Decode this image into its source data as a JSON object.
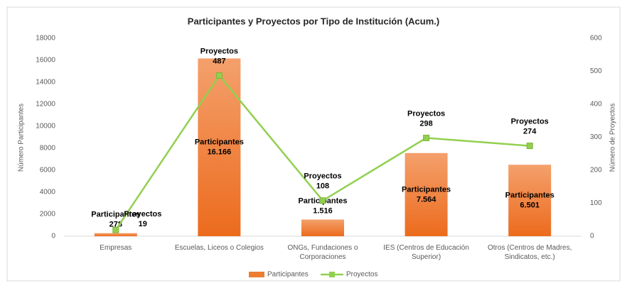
{
  "chart_data": {
    "type": "bar_line",
    "title": "Participantes y Proyectos por Tipo de Institución (Acum.)",
    "y_label": "Número Participantes",
    "y2_label": "Número de Proyectos",
    "categories": [
      "Empresas",
      "Escuelas, Liceos o Colegios",
      "ONGs, Fundaciones o Corporaciones",
      "IES (Centros de Educación Superior)",
      "Otros (Centros de Madres, Sindicatos, etc.)"
    ],
    "series": [
      {
        "name": "Participantes",
        "type": "bar",
        "color": "#ed7d31",
        "values": [
          278,
          16166,
          1516,
          7564,
          6501
        ],
        "value_labels": [
          "278",
          "16.166",
          "1.516",
          "7.564",
          "6.501"
        ]
      },
      {
        "name": "Proyectos",
        "type": "line",
        "axis": "y2",
        "color": "#92d050",
        "values": [
          19,
          487,
          108,
          298,
          274
        ]
      }
    ],
    "ylim": [
      0,
      18000
    ],
    "yticks": [
      0,
      2000,
      4000,
      6000,
      8000,
      10000,
      12000,
      14000,
      16000,
      18000
    ],
    "y2lim": [
      0,
      600
    ],
    "y2ticks": [
      0,
      100,
      200,
      300,
      400,
      500,
      600
    ],
    "grid": false,
    "legend": "bottom"
  }
}
